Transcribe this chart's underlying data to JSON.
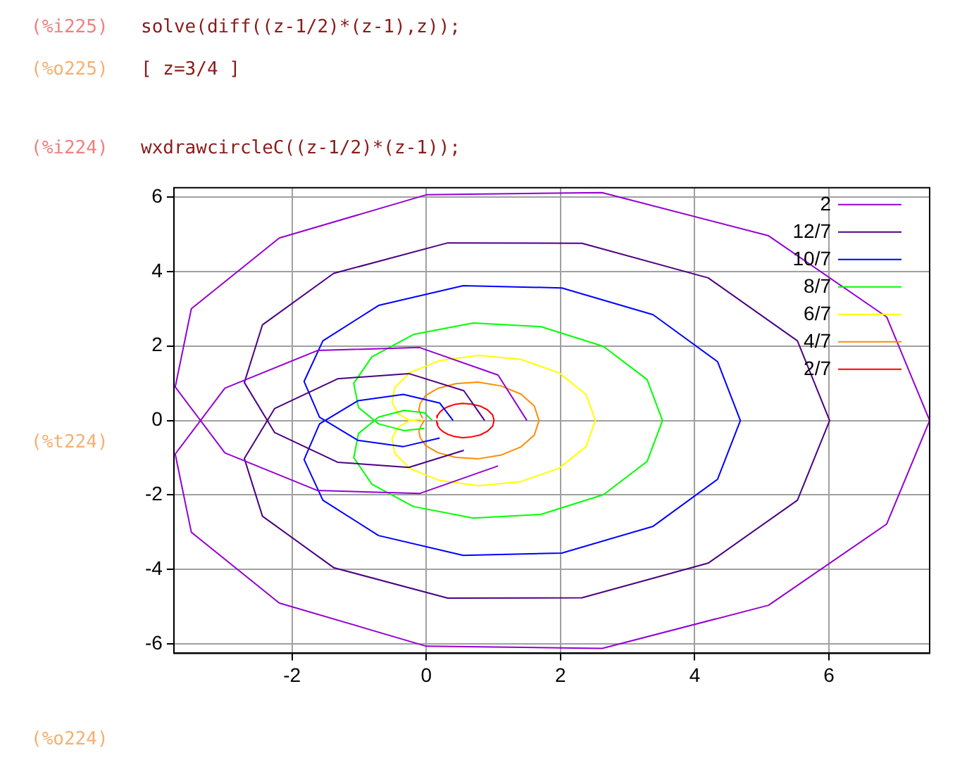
{
  "chart_data": {
    "type": "line",
    "marker": "none",
    "line_style": "solid",
    "grid": true,
    "legend": "top right",
    "xlim": [
      -3.76,
      7.5
    ],
    "ylim": [
      -6.25,
      6.25
    ],
    "xticks": [
      -2,
      0,
      2,
      4,
      6
    ],
    "yticks": [
      -6,
      -4,
      -2,
      0,
      2,
      4,
      6
    ],
    "annotations": [
      "(%i225)",
      "solve(diff((z-1/2)*(z-1),z));",
      "(%o225)",
      "[ z=3/4 ]",
      "(%i224)",
      "wxdrawcircleC((z-1/2)*(z-1));",
      "(%t224)",
      "(%o224)"
    ],
    "series": [
      {
        "name": "2",
        "color": "#9400d3",
        "x": [
          1.5,
          1.07,
          -0.1,
          -1.62,
          -3,
          -3.74,
          -3.5,
          -2.19,
          0,
          2.62,
          5.1,
          6.86,
          7.5,
          6.86,
          5.1,
          2.62,
          0,
          -2.19,
          -3.5,
          -3.74,
          -3,
          -1.62,
          -0.1,
          1.07
        ],
        "values": [
          0,
          1.22,
          1.96,
          1.88,
          0.87,
          -0.9,
          -3,
          -4.9,
          -6.06,
          -6.12,
          -4.96,
          -2.78,
          0,
          2.78,
          4.96,
          6.12,
          6.06,
          4.9,
          3,
          0.9,
          -0.87,
          -1.88,
          -1.96,
          -1.22
        ]
      },
      {
        "name": "12/7",
        "color": "#4b0082",
        "x": [
          0.87,
          0.56,
          -0.26,
          -1.32,
          -2.26,
          -2.71,
          -2.44,
          -1.38,
          0.32,
          2.32,
          4.2,
          5.53,
          6.01,
          5.53,
          4.2,
          2.32,
          0.32,
          -1.38,
          -2.44,
          -2.71,
          -2.26,
          -1.32,
          -0.26,
          0.56
        ],
        "values": [
          0,
          0.8,
          1.26,
          1.12,
          0.32,
          -1.02,
          -2.57,
          -3.95,
          -4.77,
          -4.76,
          -3.83,
          -2.14,
          0,
          2.14,
          3.83,
          4.76,
          4.77,
          3.95,
          2.57,
          1.02,
          -0.32,
          -1.12,
          -1.26,
          -0.8
        ]
      },
      {
        "name": "10/7",
        "color": "#0000ff",
        "x": [
          0.4,
          0.2,
          -0.34,
          -1.02,
          -1.59,
          -1.82,
          -1.54,
          -0.71,
          0.55,
          2.02,
          3.38,
          4.34,
          4.68,
          4.34,
          3.38,
          2.02,
          0.55,
          -0.71,
          -1.54,
          -1.82,
          -1.59,
          -1.02,
          -0.34,
          0.2
        ],
        "values": [
          0,
          0.47,
          0.7,
          0.53,
          -0.09,
          -1.05,
          -2.14,
          -3.09,
          -3.62,
          -3.56,
          -2.84,
          -1.58,
          0,
          1.58,
          2.84,
          3.56,
          3.62,
          3.09,
          2.14,
          1.05,
          0.09,
          -0.53,
          -0.7,
          -0.47
        ]
      },
      {
        "name": "8/7",
        "color": "#00ff00",
        "x": [
          0.09,
          -0.03,
          -0.33,
          -0.71,
          -1.01,
          -1.08,
          -0.81,
          -0.19,
          0.7,
          1.71,
          2.64,
          3.29,
          3.52,
          3.29,
          2.64,
          1.71,
          0.7,
          -0.19,
          -0.81,
          -1.08,
          -1.01,
          -0.71,
          -0.33,
          -0.03
        ],
        "values": [
          0,
          0.21,
          0.27,
          0.09,
          -0.35,
          -1,
          -1.71,
          -2.31,
          -2.62,
          -2.52,
          -1.99,
          -1.1,
          0,
          1.1,
          1.99,
          2.52,
          2.62,
          2.31,
          1.71,
          1,
          0.35,
          -0.09,
          -0.27,
          -0.21
        ]
      },
      {
        "name": "6/7",
        "color": "#ffff00",
        "x": [
          -0.05,
          -0.11,
          -0.25,
          -0.41,
          -0.51,
          -0.47,
          -0.24,
          0.2,
          0.78,
          1.41,
          1.98,
          2.38,
          2.52,
          2.38,
          1.98,
          1.41,
          0.78,
          0.2,
          -0.24,
          -0.47,
          -0.51,
          -0.41,
          -0.25,
          -0.11
        ],
        "values": [
          0,
          0.03,
          -0.01,
          -0.17,
          -0.48,
          -0.88,
          -1.29,
          -1.61,
          -1.75,
          -1.64,
          -1.28,
          -0.7,
          0,
          0.7,
          1.28,
          1.64,
          1.75,
          1.61,
          1.29,
          0.88,
          0.48,
          0.17,
          0.01,
          -0.03
        ]
      },
      {
        "name": "4/7",
        "color": "#ff8c00",
        "x": [
          -0.03,
          -0.05,
          -0.08,
          -0.11,
          -0.09,
          -0.01,
          0.17,
          0.44,
          0.77,
          1.11,
          1.41,
          1.61,
          1.68,
          1.61,
          1.41,
          1.11,
          0.77,
          0.44,
          0.17,
          -0.01,
          -0.09,
          -0.11,
          -0.08,
          -0.05
        ],
        "values": [
          0,
          -0.06,
          -0.15,
          -0.28,
          -0.46,
          -0.67,
          -0.86,
          -0.99,
          -1.03,
          -0.93,
          -0.71,
          -0.39,
          0,
          0.39,
          0.71,
          0.93,
          1.03,
          0.99,
          0.86,
          0.67,
          0.46,
          0.28,
          0.15,
          0.06
        ]
      },
      {
        "name": "2/7",
        "color": "#ff0000",
        "x": [
          0.15,
          0.16,
          0.17,
          0.2,
          0.25,
          0.32,
          0.42,
          0.54,
          0.67,
          0.8,
          0.91,
          0.99,
          1.01,
          0.99,
          0.91,
          0.8,
          0.67,
          0.54,
          0.42,
          0.32,
          0.25,
          0.2,
          0.17,
          0.16
        ],
        "values": [
          0,
          -0.07,
          -0.14,
          -0.22,
          -0.3,
          -0.37,
          -0.43,
          -0.46,
          -0.44,
          -0.39,
          -0.29,
          -0.15,
          0,
          0.15,
          0.29,
          0.39,
          0.44,
          0.46,
          0.43,
          0.37,
          0.3,
          0.22,
          0.14,
          0.07
        ]
      }
    ]
  }
}
